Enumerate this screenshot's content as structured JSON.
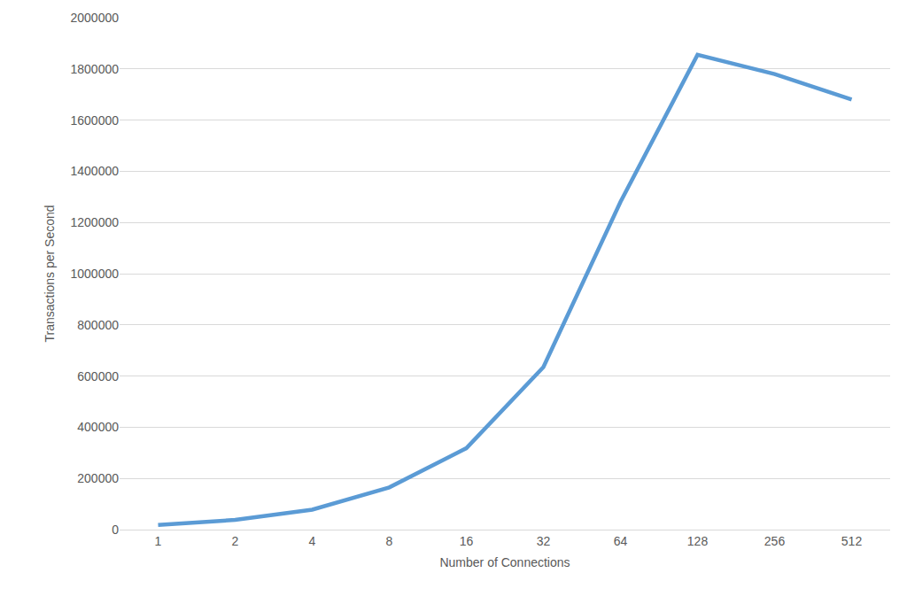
{
  "chart_data": {
    "type": "line",
    "x_label": "Number of Connections",
    "y_label": "Transactions per Second",
    "categories": [
      "1",
      "2",
      "4",
      "8",
      "16",
      "32",
      "64",
      "128",
      "256",
      "512"
    ],
    "values": [
      18000,
      38000,
      78000,
      165000,
      318000,
      635000,
      1280000,
      1855000,
      1780000,
      1680000
    ],
    "color": "#5b9bd5",
    "ylim": [
      0,
      2000000
    ],
    "yticks": [
      0,
      200000,
      400000,
      600000,
      800000,
      1000000,
      1200000,
      1400000,
      1600000,
      1800000,
      2000000
    ],
    "grid": true
  }
}
